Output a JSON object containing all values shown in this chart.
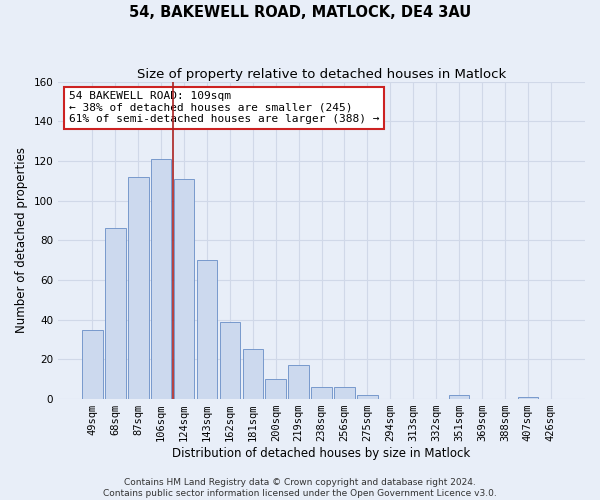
{
  "title": "54, BAKEWELL ROAD, MATLOCK, DE4 3AU",
  "subtitle": "Size of property relative to detached houses in Matlock",
  "xlabel": "Distribution of detached houses by size in Matlock",
  "ylabel": "Number of detached properties",
  "bar_labels": [
    "49sqm",
    "68sqm",
    "87sqm",
    "106sqm",
    "124sqm",
    "143sqm",
    "162sqm",
    "181sqm",
    "200sqm",
    "219sqm",
    "238sqm",
    "256sqm",
    "275sqm",
    "294sqm",
    "313sqm",
    "332sqm",
    "351sqm",
    "369sqm",
    "388sqm",
    "407sqm",
    "426sqm"
  ],
  "bar_values": [
    35,
    86,
    112,
    121,
    111,
    70,
    39,
    25,
    10,
    17,
    6,
    6,
    2,
    0,
    0,
    0,
    2,
    0,
    0,
    1,
    0
  ],
  "bar_color": "#ccd9ee",
  "bar_edge_color": "#7799cc",
  "vline_x": 3.5,
  "vline_color": "#aa2222",
  "annotation_line1": "54 BAKEWELL ROAD: 109sqm",
  "annotation_line2": "← 38% of detached houses are smaller (245)",
  "annotation_line3": "61% of semi-detached houses are larger (388) →",
  "annotation_box_color": "#ffffff",
  "annotation_border_color": "#cc2222",
  "ylim": [
    0,
    160
  ],
  "yticks": [
    0,
    20,
    40,
    60,
    80,
    100,
    120,
    140,
    160
  ],
  "footer_line1": "Contains HM Land Registry data © Crown copyright and database right 2024.",
  "footer_line2": "Contains public sector information licensed under the Open Government Licence v3.0.",
  "bg_color": "#e8eef8",
  "grid_color": "#d0d8e8",
  "title_fontsize": 10.5,
  "subtitle_fontsize": 9.5,
  "axis_label_fontsize": 8.5,
  "tick_fontsize": 7.5,
  "annotation_fontsize": 8,
  "footer_fontsize": 6.5
}
